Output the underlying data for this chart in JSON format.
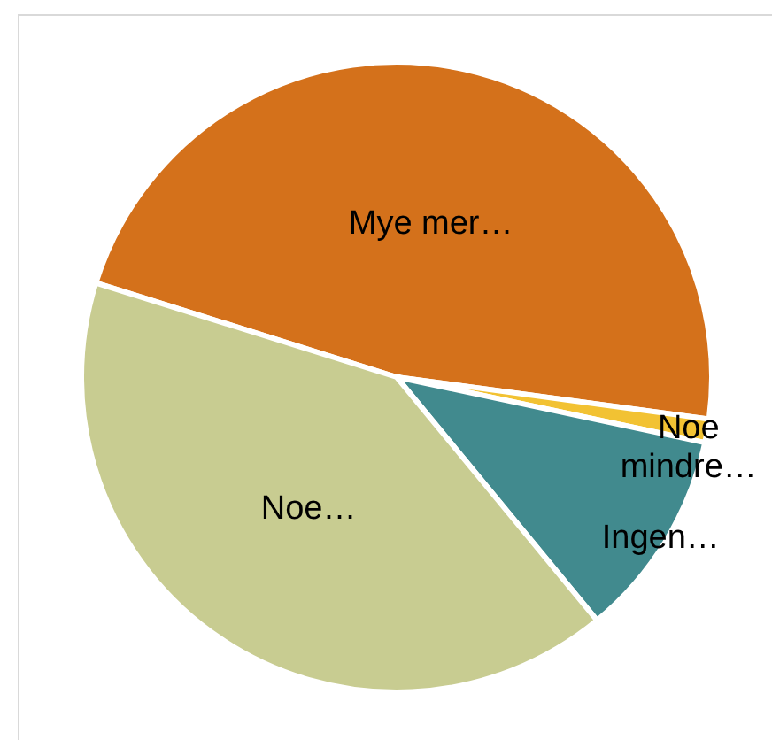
{
  "chart_data": {
    "type": "pie",
    "categories": [
      "Mye mer…",
      "Noe mindre…",
      "Ingen…",
      "Noe…"
    ],
    "values": [
      47.3,
      1.2,
      10.7,
      40.8
    ],
    "colors": [
      "#d4711b",
      "#f2c233",
      "#418a8e",
      "#c8cc91"
    ]
  }
}
